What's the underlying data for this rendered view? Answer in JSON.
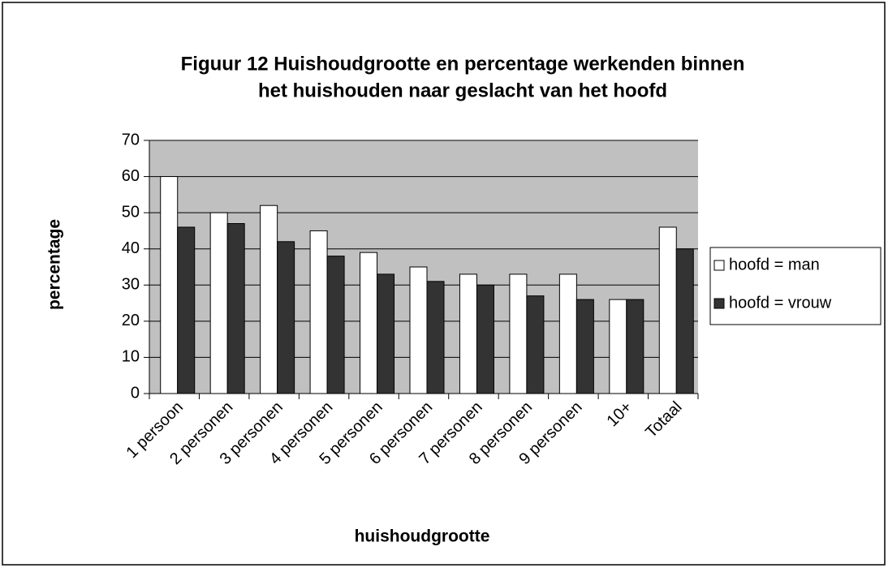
{
  "chart_data": {
    "type": "bar",
    "title": [
      "Figuur 12 Huishoudgrootte en percentage werkenden binnen",
      "het huishouden naar geslacht van het hoofd"
    ],
    "x_label": "huishoudgrootte",
    "y_label": "percentage",
    "categories": [
      "1 persoon",
      "2 personen",
      "3 personen",
      "4 personen",
      "5 personen",
      "6 personen",
      "7 personen",
      "8 personen",
      "9 personen",
      "10+",
      "Totaal"
    ],
    "series": [
      {
        "name": "hoofd = man",
        "color": "#ffffff",
        "values": [
          60,
          50,
          52,
          45,
          39,
          35,
          33,
          33,
          33,
          26,
          46
        ]
      },
      {
        "name": "hoofd = vrouw",
        "color": "#333333",
        "values": [
          46,
          47,
          42,
          38,
          33,
          31,
          30,
          27,
          26,
          26,
          40
        ]
      }
    ],
    "ylim": [
      0,
      70
    ],
    "yticks": [
      0,
      10,
      20,
      30,
      40,
      50,
      60,
      70
    ],
    "grid": true,
    "legend": "right"
  }
}
